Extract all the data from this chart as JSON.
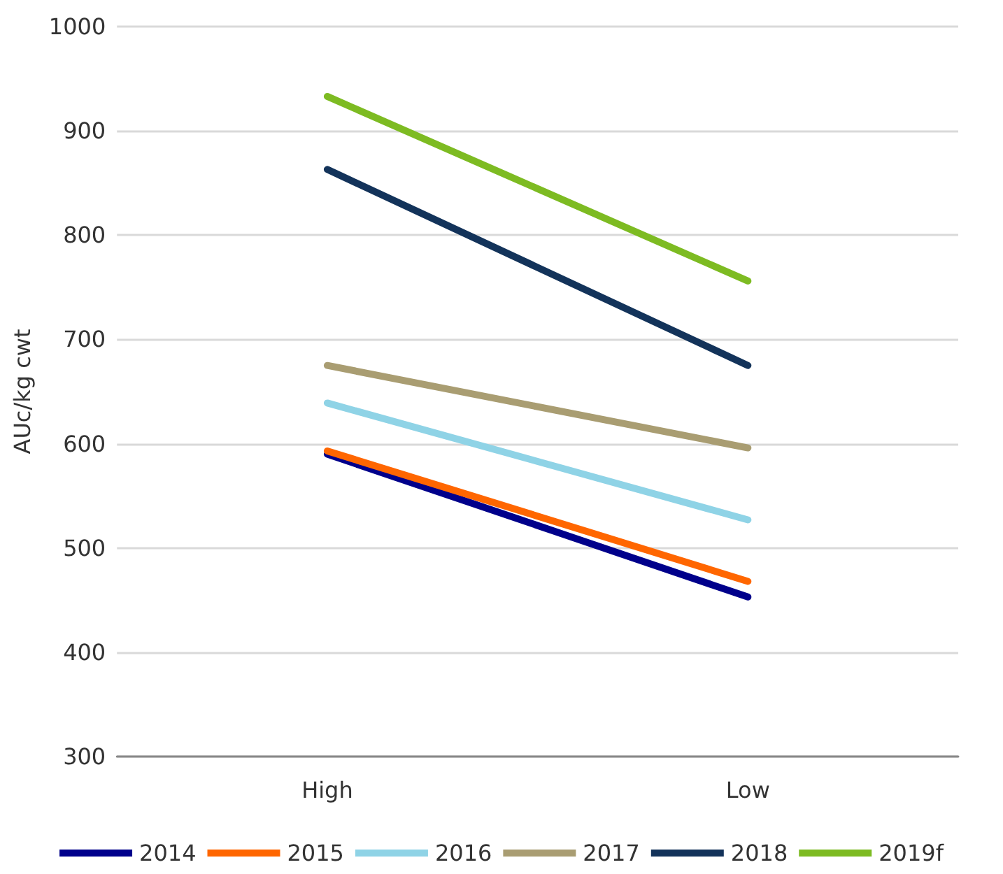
{
  "chart_data": {
    "type": "line",
    "ylabel": "AUc/kg cwt",
    "categories": [
      "High",
      "Low"
    ],
    "series": [
      {
        "name": "2014",
        "color": "#00008b",
        "values": [
          590,
          453
        ]
      },
      {
        "name": "2015",
        "color": "#ff6600",
        "values": [
          593,
          468
        ]
      },
      {
        "name": "2016",
        "color": "#8fd3e6",
        "values": [
          639,
          527
        ]
      },
      {
        "name": "2017",
        "color": "#a99d72",
        "values": [
          675,
          596
        ]
      },
      {
        "name": "2018",
        "color": "#13335a",
        "values": [
          863,
          675
        ]
      },
      {
        "name": "2019f",
        "color": "#7dbb22",
        "values": [
          933,
          756
        ]
      }
    ],
    "ylim": [
      300,
      1000
    ],
    "yticks": [
      300,
      400,
      500,
      600,
      700,
      800,
      900,
      1000
    ],
    "grid": "y",
    "legend": "bottom",
    "marker": "none",
    "line_style": "solid"
  }
}
